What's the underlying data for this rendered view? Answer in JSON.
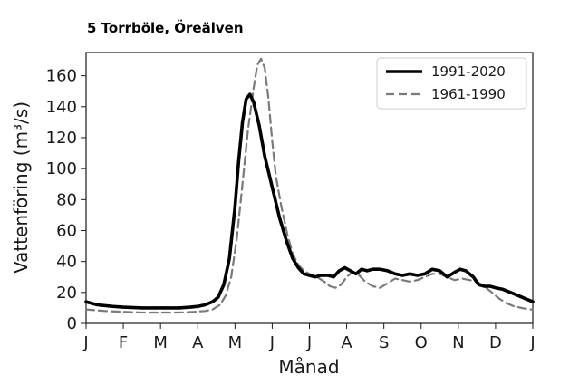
{
  "figure_title": "5 Torrböle, Öreälven",
  "chart_data": {
    "type": "line",
    "xlabel": "Månad",
    "ylabel": "Vattenföring (m³/s)",
    "xlim": [
      0,
      12
    ],
    "ylim": [
      0,
      175
    ],
    "x_tick_labels": [
      "J",
      "F",
      "M",
      "A",
      "M",
      "J",
      "J",
      "A",
      "S",
      "O",
      "N",
      "D",
      "J"
    ],
    "y_ticks": [
      0,
      20,
      40,
      60,
      80,
      100,
      120,
      140,
      160
    ],
    "grid": false,
    "legend_position": "top-right",
    "series": [
      {
        "name": "1991-2020",
        "style": "solid",
        "color": "#000000",
        "x": [
          0,
          0.3,
          0.7,
          1.0,
          1.5,
          2.0,
          2.5,
          2.8,
          3.0,
          3.2,
          3.4,
          3.55,
          3.7,
          3.85,
          4.0,
          4.1,
          4.2,
          4.3,
          4.4,
          4.5,
          4.65,
          4.8,
          5.0,
          5.2,
          5.4,
          5.55,
          5.7,
          5.85,
          6.0,
          6.15,
          6.3,
          6.5,
          6.65,
          6.8,
          6.95,
          7.1,
          7.25,
          7.4,
          7.55,
          7.7,
          7.9,
          8.1,
          8.3,
          8.5,
          8.7,
          8.9,
          9.1,
          9.3,
          9.5,
          9.7,
          9.9,
          10.05,
          10.2,
          10.4,
          10.55,
          10.7,
          10.85,
          11.0,
          11.2,
          11.4,
          11.6,
          11.8,
          12.0
        ],
        "y": [
          14,
          12,
          11,
          10.5,
          10,
          10,
          10,
          10.5,
          11,
          12,
          14,
          17,
          25,
          42,
          75,
          105,
          130,
          145,
          148,
          143,
          128,
          108,
          88,
          68,
          52,
          42,
          36,
          32,
          31,
          30,
          31,
          31,
          30,
          34,
          36,
          34,
          32,
          35,
          34,
          35,
          35,
          34,
          32,
          31,
          32,
          31,
          32,
          35,
          34,
          30,
          33,
          35,
          34,
          30,
          25,
          24,
          24,
          23,
          22,
          20,
          18,
          16,
          14
        ]
      },
      {
        "name": "1961-1990",
        "style": "dashed",
        "color": "#7a7a7a",
        "x": [
          0,
          0.5,
          1.0,
          1.5,
          2.0,
          2.5,
          2.9,
          3.2,
          3.4,
          3.6,
          3.75,
          3.9,
          4.05,
          4.2,
          4.35,
          4.5,
          4.6,
          4.7,
          4.8,
          4.9,
          5.0,
          5.1,
          5.25,
          5.4,
          5.55,
          5.7,
          5.85,
          6.0,
          6.2,
          6.4,
          6.55,
          6.7,
          6.85,
          7.0,
          7.15,
          7.3,
          7.5,
          7.7,
          7.9,
          8.1,
          8.3,
          8.5,
          8.7,
          8.9,
          9.1,
          9.3,
          9.5,
          9.7,
          9.9,
          10.1,
          10.3,
          10.5,
          10.7,
          10.9,
          11.1,
          11.3,
          11.5,
          11.7,
          11.9,
          12.0
        ],
        "y": [
          9,
          8,
          7.5,
          7,
          7,
          7,
          7.5,
          8,
          9,
          12,
          18,
          30,
          55,
          90,
          125,
          152,
          167,
          171,
          165,
          145,
          118,
          95,
          75,
          58,
          45,
          38,
          34,
          32,
          30,
          27,
          24,
          23,
          25,
          30,
          33,
          32,
          27,
          24,
          23,
          26,
          29,
          28,
          27,
          28,
          30,
          32,
          32,
          30,
          28,
          29,
          28,
          27,
          24,
          20,
          16,
          13,
          11,
          10,
          9,
          9
        ]
      }
    ]
  }
}
